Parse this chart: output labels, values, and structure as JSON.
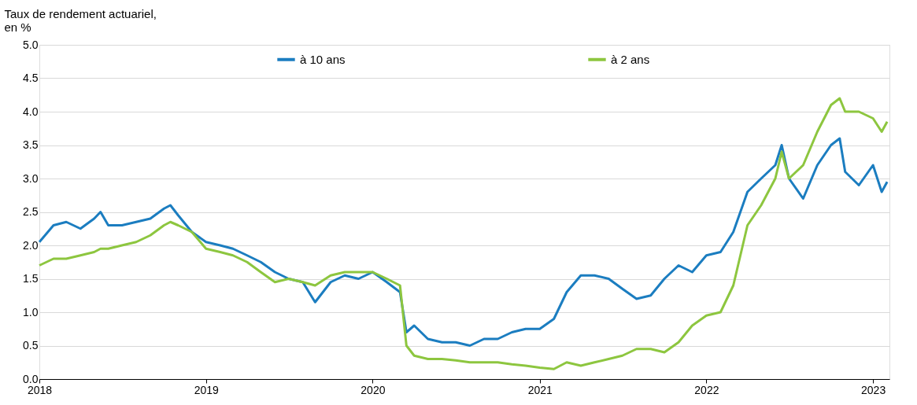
{
  "chart_data": {
    "type": "line",
    "ylabel": "Taux de rendement actuariel,\nen %",
    "x": [
      "2018-01-01",
      "2018-02-01",
      "2018-03-01",
      "2018-04-01",
      "2018-05-01",
      "2018-05-15",
      "2018-06-01",
      "2018-07-01",
      "2018-08-01",
      "2018-09-01",
      "2018-10-01",
      "2018-10-15",
      "2018-11-01",
      "2018-12-01",
      "2019-01-01",
      "2019-02-01",
      "2019-03-01",
      "2019-04-01",
      "2019-05-01",
      "2019-06-01",
      "2019-07-01",
      "2019-08-01",
      "2019-08-28",
      "2019-10-01",
      "2019-11-01",
      "2019-12-01",
      "2020-01-01",
      "2020-02-01",
      "2020-03-01",
      "2020-03-15",
      "2020-04-01",
      "2020-05-01",
      "2020-06-01",
      "2020-07-01",
      "2020-08-01",
      "2020-09-01",
      "2020-10-01",
      "2020-11-01",
      "2020-12-01",
      "2021-01-01",
      "2021-02-01",
      "2021-03-01",
      "2021-04-01",
      "2021-05-01",
      "2021-06-01",
      "2021-07-01",
      "2021-08-01",
      "2021-09-01",
      "2021-10-01",
      "2021-11-01",
      "2021-12-01",
      "2022-01-01",
      "2022-02-01",
      "2022-03-01",
      "2022-04-01",
      "2022-05-01",
      "2022-06-01",
      "2022-06-15",
      "2022-07-01",
      "2022-08-01",
      "2022-09-01",
      "2022-10-01",
      "2022-10-20",
      "2022-11-01",
      "2022-12-01",
      "2023-01-01",
      "2023-01-20",
      "2023-02-01"
    ],
    "series": [
      {
        "name": "à 10 ans",
        "color": "#1b7dc0",
        "values": [
          2.05,
          2.3,
          2.35,
          2.25,
          2.4,
          2.5,
          2.3,
          2.3,
          2.35,
          2.4,
          2.55,
          2.6,
          2.45,
          2.2,
          2.05,
          2.0,
          1.95,
          1.85,
          1.75,
          1.6,
          1.5,
          1.45,
          1.15,
          1.45,
          1.55,
          1.5,
          1.6,
          1.45,
          1.3,
          0.7,
          0.8,
          0.6,
          0.55,
          0.55,
          0.5,
          0.6,
          0.6,
          0.7,
          0.75,
          0.75,
          0.9,
          1.3,
          1.55,
          1.55,
          1.5,
          1.35,
          1.2,
          1.25,
          1.5,
          1.7,
          1.6,
          1.85,
          1.9,
          2.2,
          2.8,
          3.0,
          3.2,
          3.5,
          3.0,
          2.7,
          3.2,
          3.5,
          3.6,
          3.1,
          2.9,
          3.2,
          2.8,
          2.95
        ]
      },
      {
        "name": "à 2 ans",
        "color": "#8dc63f",
        "values": [
          1.7,
          1.8,
          1.8,
          1.85,
          1.9,
          1.95,
          1.95,
          2.0,
          2.05,
          2.15,
          2.3,
          2.35,
          2.3,
          2.2,
          1.95,
          1.9,
          1.85,
          1.75,
          1.6,
          1.45,
          1.5,
          1.45,
          1.4,
          1.55,
          1.6,
          1.6,
          1.6,
          1.5,
          1.4,
          0.5,
          0.35,
          0.3,
          0.3,
          0.28,
          0.25,
          0.25,
          0.25,
          0.22,
          0.2,
          0.17,
          0.15,
          0.25,
          0.2,
          0.25,
          0.3,
          0.35,
          0.45,
          0.45,
          0.4,
          0.55,
          0.8,
          0.95,
          1.0,
          1.4,
          2.3,
          2.6,
          3.0,
          3.4,
          3.0,
          3.2,
          3.7,
          4.1,
          4.2,
          4.0,
          4.0,
          3.9,
          3.7,
          3.85
        ]
      }
    ],
    "xlim": [
      "2018-01-01",
      "2023-02-06"
    ],
    "xticks": [
      "2018",
      "2019",
      "2020",
      "2021",
      "2022",
      "2023"
    ],
    "ylim": [
      0,
      5
    ],
    "yticks": [
      {
        "value": 0,
        "label": "0.0"
      },
      {
        "value": 0.5,
        "label": "0.5"
      },
      {
        "value": 1,
        "label": "1.0"
      },
      {
        "value": 1.5,
        "label": "1.5"
      },
      {
        "value": 2,
        "label": "2.0"
      },
      {
        "value": 2.5,
        "label": "2.5"
      },
      {
        "value": 3,
        "label": "3.0"
      },
      {
        "value": 3.5,
        "label": "3.5"
      },
      {
        "value": 4,
        "label": "4.0"
      },
      {
        "value": 4.5,
        "label": "4.5"
      },
      {
        "value": 5,
        "label": "5.0"
      }
    ],
    "grid": "y",
    "legend": "top",
    "marker": "none",
    "line_style": "solid"
  }
}
